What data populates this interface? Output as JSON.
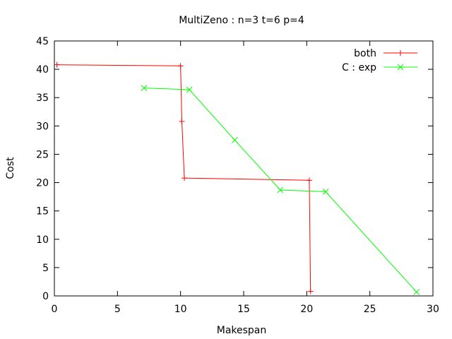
{
  "chart_data": {
    "type": "line",
    "title": "MultiZeno : n=3 t=6 p=4",
    "xlabel": "Makespan",
    "ylabel": "Cost",
    "xlim": [
      0,
      30
    ],
    "ylim": [
      0,
      45
    ],
    "xticks": [
      0,
      5,
      10,
      15,
      20,
      25,
      30
    ],
    "yticks": [
      0,
      5,
      10,
      15,
      20,
      25,
      30,
      35,
      40,
      45
    ],
    "grid": false,
    "legend_position": "top-right",
    "series": [
      {
        "name": "both",
        "color": "#ff0000",
        "marker": "plus",
        "points": [
          [
            0.2,
            40.8
          ],
          [
            10.0,
            40.6
          ],
          [
            10.1,
            30.8
          ],
          [
            10.3,
            20.8
          ],
          [
            20.2,
            20.4
          ],
          [
            20.3,
            0.8
          ]
        ]
      },
      {
        "name": "C : exp",
        "color": "#00ff00",
        "marker": "cross",
        "points": [
          [
            7.1,
            36.7
          ],
          [
            10.7,
            36.4
          ],
          [
            14.3,
            27.5
          ],
          [
            17.9,
            18.7
          ],
          [
            21.5,
            18.4
          ],
          [
            28.7,
            0.7
          ]
        ]
      }
    ]
  }
}
